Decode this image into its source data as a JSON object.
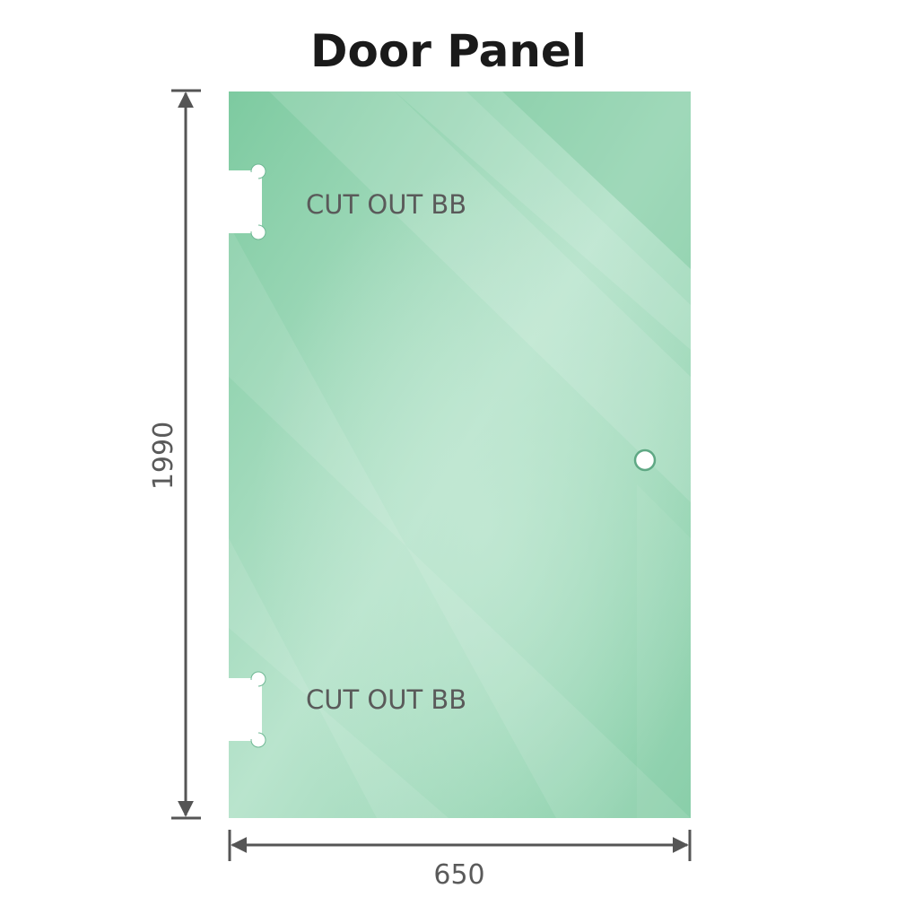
{
  "title": "Door Panel",
  "panel": {
    "color": "#84cda6",
    "cutout_top_label": "CUT OUT BB",
    "cutout_bottom_label": "CUT OUT BB"
  },
  "dimensions": {
    "height": "1990",
    "width": "650",
    "line_color": "#555555"
  }
}
